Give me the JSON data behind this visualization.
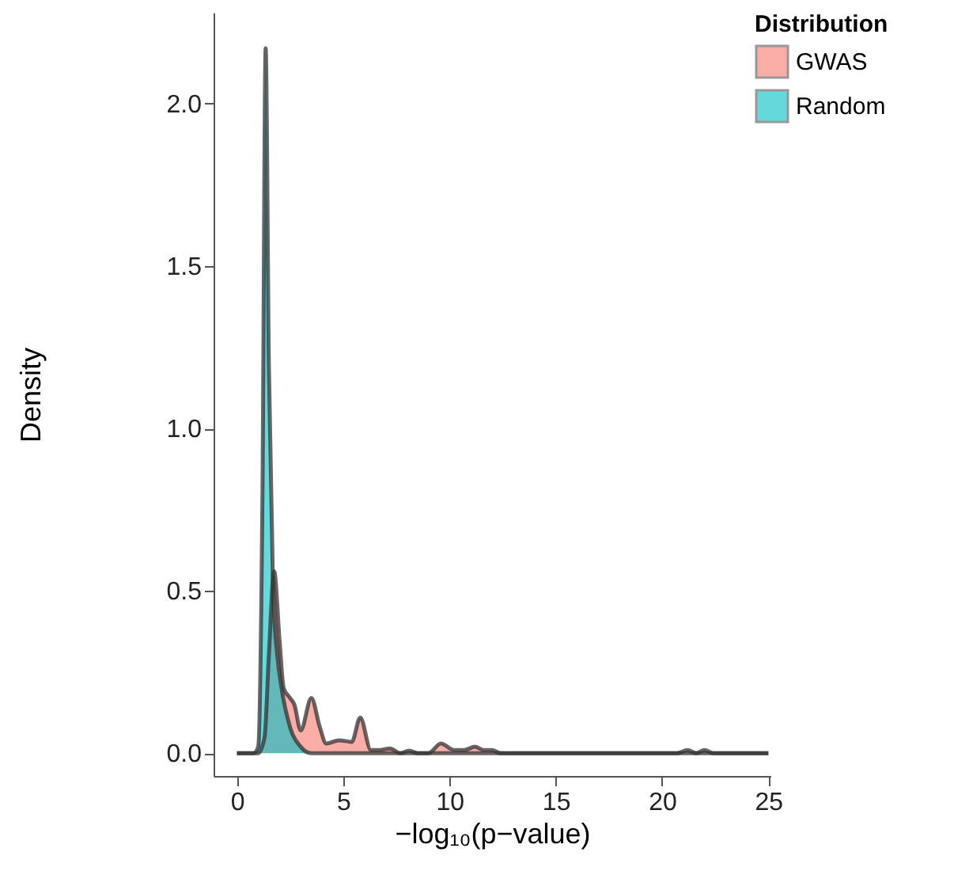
{
  "chart_data": {
    "type": "area",
    "xlabel": "−log₁₀(p−value)",
    "ylabel": "Density",
    "legend_title": "Distribution",
    "series": [
      {
        "name": "GWAS",
        "color": "#f8766d",
        "x": [
          0,
          1.0,
          1.3,
          1.5,
          1.75,
          2.0,
          2.2,
          2.5,
          2.7,
          3.0,
          3.5,
          3.9,
          4.2,
          4.8,
          5.4,
          5.8,
          6.3,
          6.7,
          7.2,
          7.7,
          8.1,
          8.5,
          9.0,
          9.6,
          10.2,
          10.7,
          11.2,
          11.6,
          12.0,
          12.4,
          20.7,
          21.2,
          21.6,
          22.0,
          22.4,
          25
        ],
        "values": [
          0,
          0,
          0.05,
          0.3,
          0.56,
          0.35,
          0.2,
          0.17,
          0.15,
          0.07,
          0.17,
          0.08,
          0.03,
          0.04,
          0.035,
          0.11,
          0.01,
          0.01,
          0.015,
          0,
          0.008,
          0,
          0,
          0.03,
          0.01,
          0.01,
          0.02,
          0.01,
          0.01,
          0,
          0,
          0.01,
          0,
          0.01,
          0,
          0
        ]
      },
      {
        "name": "Random",
        "color": "#00bfc4",
        "x": [
          0,
          0.8,
          1.0,
          1.2,
          1.35,
          1.5,
          1.7,
          1.9,
          2.1,
          2.5,
          3.0,
          3.5,
          25
        ],
        "values": [
          0,
          0,
          0.02,
          0.8,
          2.17,
          1.2,
          0.5,
          0.3,
          0.2,
          0.08,
          0.02,
          0,
          0
        ]
      }
    ],
    "xlim": [
      -1.1,
      25.1
    ],
    "xticks": [
      0,
      5,
      10,
      15,
      20,
      25
    ],
    "ylim": [
      -0.07,
      2.28
    ],
    "yticks": [
      {
        "value": 0,
        "label": "0.0"
      },
      {
        "value": 0.5,
        "label": "0.5"
      },
      {
        "value": 1,
        "label": "1.0"
      },
      {
        "value": 1.5,
        "label": "1.5"
      },
      {
        "value": 2,
        "label": "2.0"
      }
    ],
    "grid": false,
    "legend": "right"
  }
}
